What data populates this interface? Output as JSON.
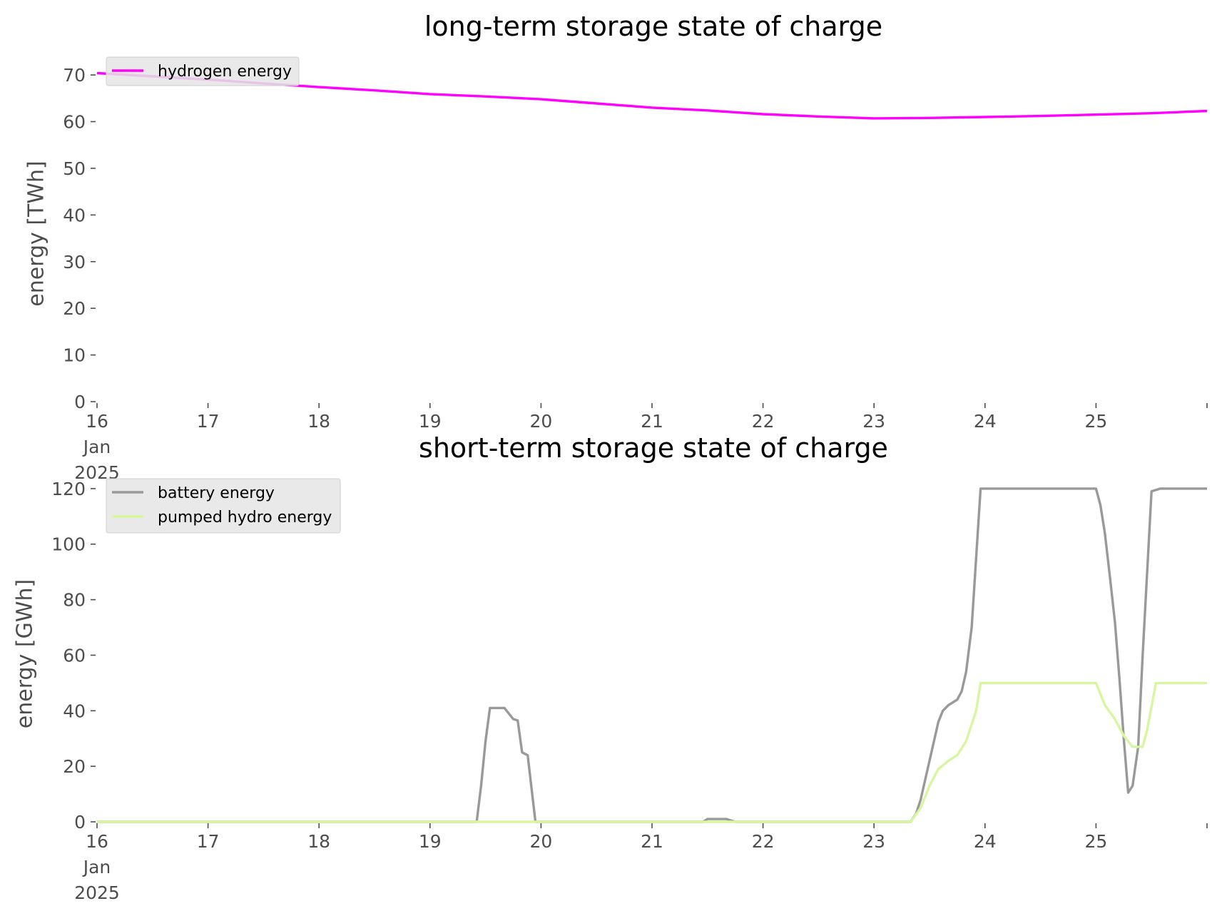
{
  "chart_data": [
    {
      "type": "line",
      "title": "long-term storage state of charge",
      "xlabel": "",
      "ylabel": "energy [TWh]",
      "x_ticks": [
        [
          "16",
          "Jan",
          "2025"
        ],
        [
          "17"
        ],
        [
          "18"
        ],
        [
          "19"
        ],
        [
          "20"
        ],
        [
          "21"
        ],
        [
          "22"
        ],
        [
          "23"
        ],
        [
          "24"
        ],
        [
          "25"
        ]
      ],
      "xlim_days": [
        16,
        26
      ],
      "ylim": [
        0,
        72
      ],
      "y_ticks": [
        0,
        10,
        20,
        30,
        40,
        50,
        60,
        70
      ],
      "grid": false,
      "legend_position": "top-left",
      "series": [
        {
          "name": "hydrogen energy",
          "color": "#ff00ff",
          "x": [
            16,
            16.5,
            17,
            17.5,
            18,
            18.5,
            19,
            19.5,
            20,
            20.5,
            21,
            21.5,
            22,
            22.5,
            23,
            23.5,
            24,
            24.5,
            25,
            25.5,
            26
          ],
          "values": [
            70.4,
            69.7,
            69.0,
            68.2,
            67.4,
            66.7,
            65.9,
            65.4,
            64.8,
            63.9,
            63.0,
            62.4,
            61.6,
            61.1,
            60.7,
            60.8,
            61.0,
            61.2,
            61.5,
            61.8,
            62.3
          ]
        }
      ]
    },
    {
      "type": "line",
      "title": "short-term storage state of charge",
      "xlabel": "",
      "ylabel": "energy [GWh]",
      "x_ticks": [
        [
          "16",
          "Jan",
          "2025"
        ],
        [
          "17"
        ],
        [
          "18"
        ],
        [
          "19"
        ],
        [
          "20"
        ],
        [
          "21"
        ],
        [
          "22"
        ],
        [
          "23"
        ],
        [
          "24"
        ],
        [
          "25"
        ]
      ],
      "xlim_days": [
        16,
        26
      ],
      "ylim": [
        0,
        121
      ],
      "y_ticks": [
        0,
        20,
        40,
        60,
        80,
        100,
        120
      ],
      "grid": false,
      "legend_position": "top-left",
      "series": [
        {
          "name": "battery energy",
          "color": "#999999",
          "x": [
            16,
            19.42,
            19.46,
            19.5,
            19.54,
            19.58,
            19.67,
            19.75,
            19.79,
            19.83,
            19.88,
            19.95,
            20,
            21.46,
            21.5,
            21.67,
            21.75,
            23.33,
            23.38,
            23.42,
            23.5,
            23.58,
            23.62,
            23.67,
            23.75,
            23.79,
            23.83,
            23.88,
            23.96,
            24,
            25,
            25.04,
            25.08,
            25.12,
            25.17,
            25.21,
            25.25,
            25.29,
            25.33,
            25.38,
            25.42,
            25.5,
            25.58,
            25.62,
            26
          ],
          "values": [
            0,
            0,
            13,
            29,
            41,
            41,
            41,
            37,
            36.5,
            25,
            24,
            0,
            0,
            0,
            1,
            1,
            0,
            0,
            3,
            8,
            22,
            36,
            40,
            42,
            44,
            47,
            54,
            70,
            120,
            120,
            120,
            114,
            104,
            90,
            72,
            52,
            30,
            10.5,
            13,
            27,
            60,
            119,
            120,
            120,
            120
          ]
        },
        {
          "name": "pumped hydro energy",
          "color": "#d6f7a0",
          "x": [
            16,
            23.33,
            23.42,
            23.5,
            23.58,
            23.67,
            23.75,
            23.83,
            23.92,
            23.96,
            25,
            25.08,
            25.17,
            25.25,
            25.33,
            25.42,
            25.46,
            25.54,
            25.62,
            26
          ],
          "values": [
            0,
            0,
            5,
            13,
            19,
            22,
            24,
            29,
            40,
            50,
            50,
            42,
            37,
            31,
            27,
            27,
            33,
            50,
            50,
            50
          ]
        }
      ]
    }
  ]
}
